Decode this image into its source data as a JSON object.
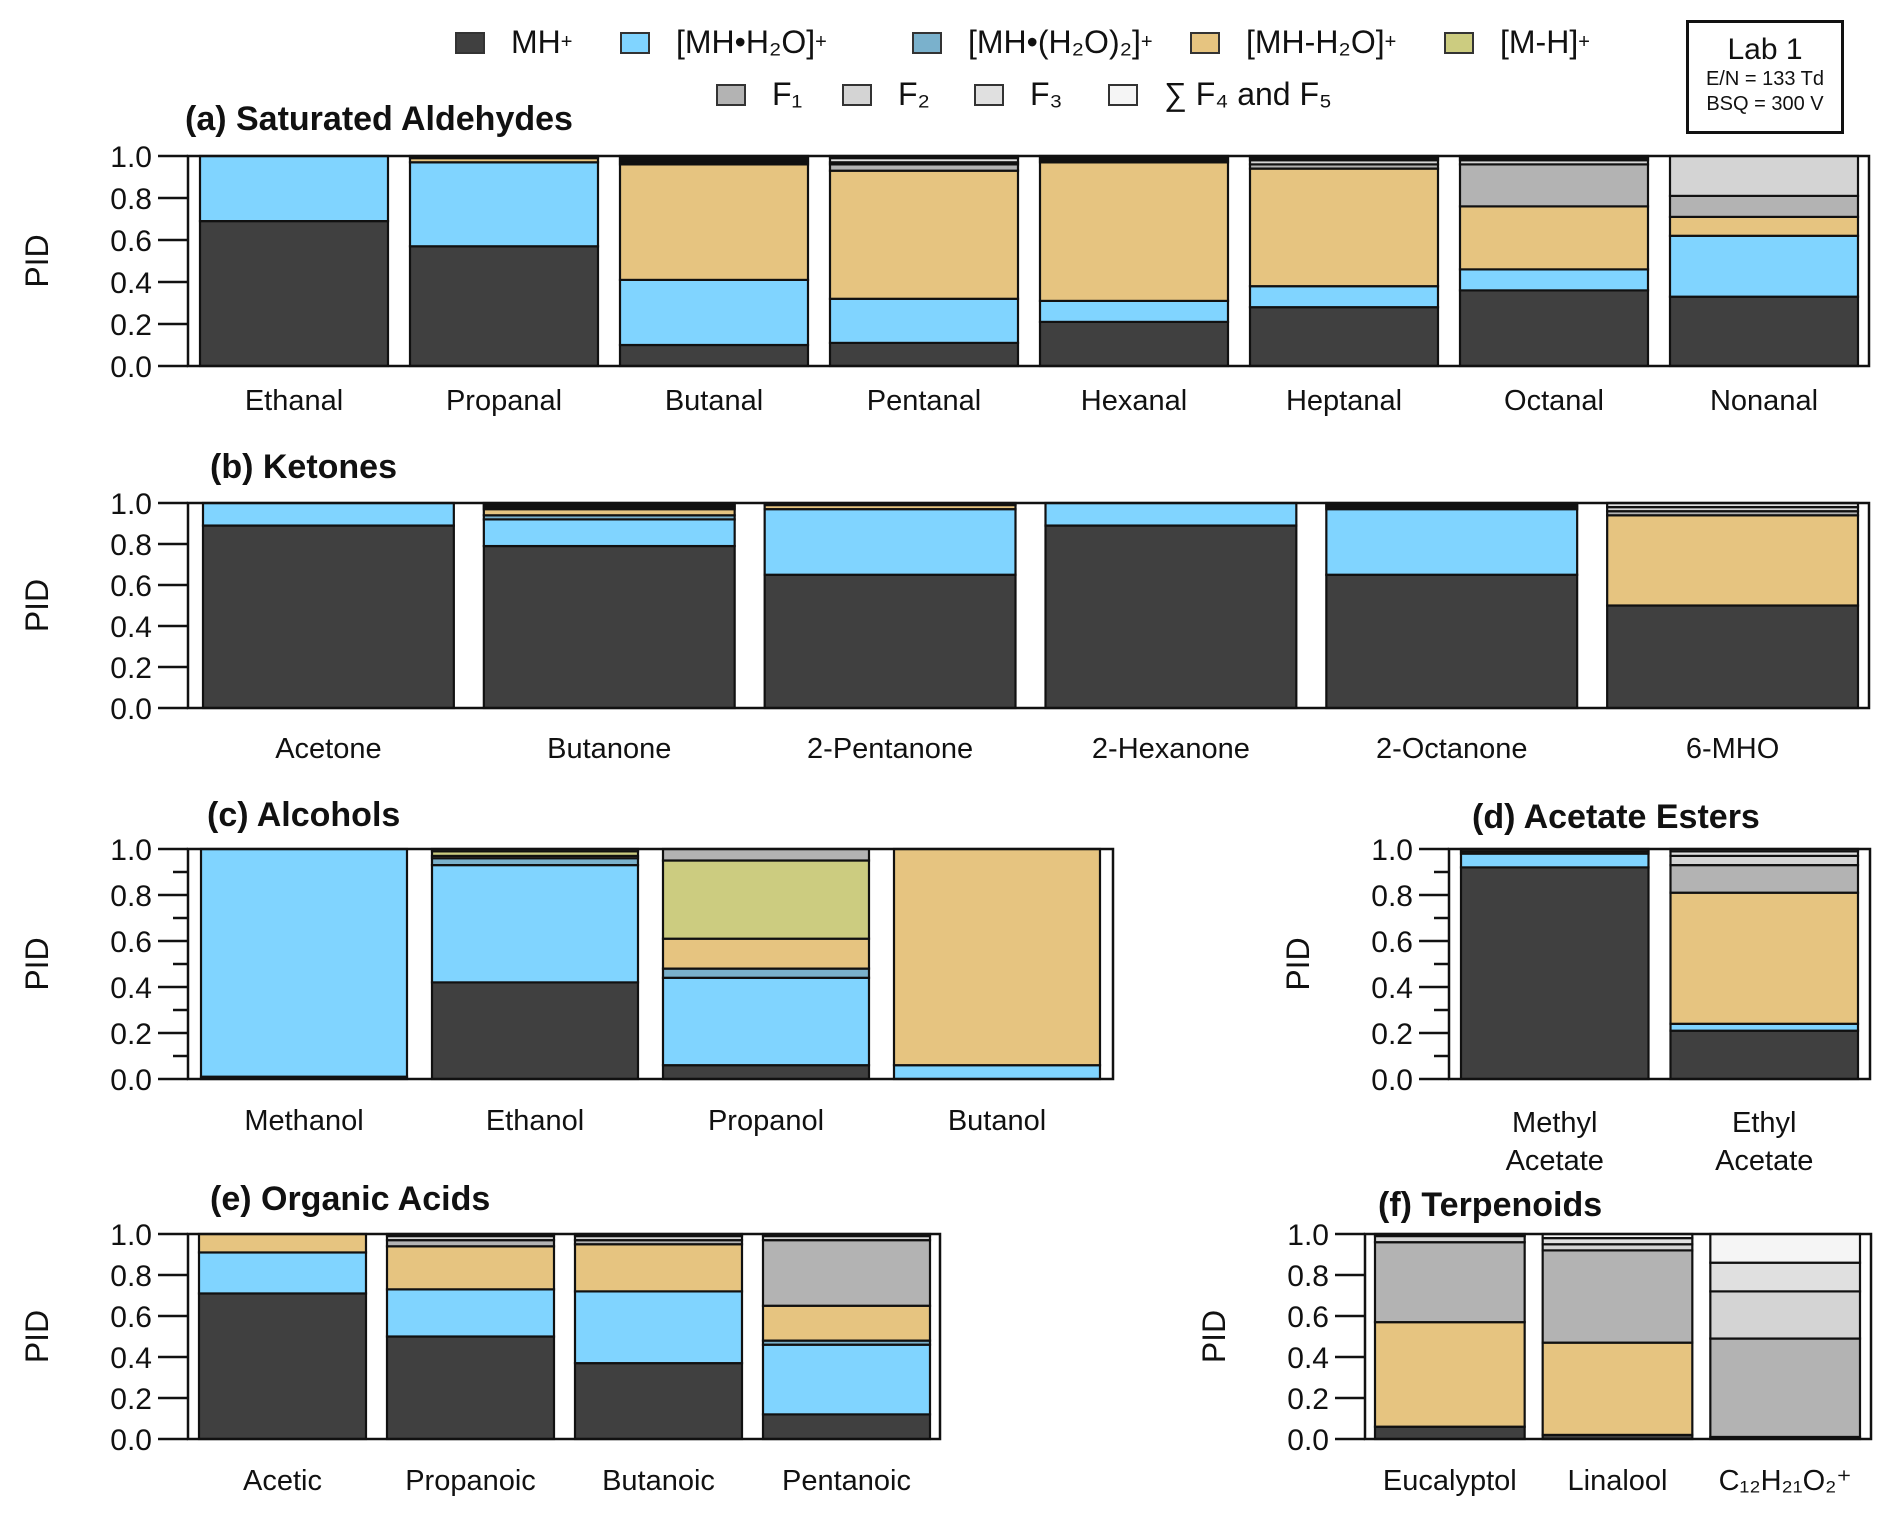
{
  "chart_data": {
    "type": "bar",
    "stacked": true,
    "ylabel": "PID",
    "ylim": [
      0,
      1.0
    ],
    "yticks": [
      "0.0",
      "0.2",
      "0.4",
      "0.6",
      "0.8",
      "1.0"
    ],
    "legend": {
      "placement": "top",
      "entries": [
        {
          "key": "MH",
          "label": "MH",
          "sup": "+",
          "color": "#404040"
        },
        {
          "key": "MH_H2O",
          "label": "[MH•H₂O]",
          "sup": "+",
          "color": "#80d4ff"
        },
        {
          "key": "MH_H2O2",
          "label": "[MH•(H₂O)₂]",
          "sup": "+",
          "color": "#7ab1cc"
        },
        {
          "key": "MH_minus_H2O",
          "label": "[MH-H₂O]",
          "sup": "+",
          "color": "#e6c480"
        },
        {
          "key": "M_minus_H",
          "label": "[M-H]",
          "sup": "+",
          "color": "#cccc80"
        },
        {
          "key": "F1",
          "label": "F₁",
          "sup": "",
          "color": "#b3b3b3"
        },
        {
          "key": "F2",
          "label": "F₂",
          "sup": "",
          "color": "#d4d4d4"
        },
        {
          "key": "F3",
          "label": "F₃",
          "sup": "",
          "color": "#e0e0e0"
        },
        {
          "key": "F45",
          "label": "∑ F₄ and F₅",
          "sup": "",
          "color": "#f5f5f5"
        }
      ]
    },
    "annotation": {
      "title": "Lab 1",
      "line1": "E/N = 133 Td",
      "line2": "BSQ = 300 V"
    },
    "panels": [
      {
        "id": "a",
        "title": "(a) Saturated Aldehydes",
        "categories": [
          "Ethanal",
          "Propanal",
          "Butanal",
          "Pentanal",
          "Hexanal",
          "Heptanal",
          "Octanal",
          "Nonanal"
        ],
        "series": {
          "MH": [
            0.69,
            0.57,
            0.1,
            0.11,
            0.21,
            0.28,
            0.36,
            0.33
          ],
          "MH_H2O": [
            0.31,
            0.4,
            0.31,
            0.21,
            0.1,
            0.1,
            0.1,
            0.29
          ],
          "MH_H2O2": [
            0,
            0,
            0,
            0,
            0,
            0,
            0,
            0
          ],
          "MH_minus_H2O": [
            0,
            0.02,
            0.55,
            0.61,
            0.66,
            0.56,
            0.3,
            0.09
          ],
          "M_minus_H": [
            0,
            0,
            0,
            0,
            0,
            0,
            0,
            0
          ],
          "F1": [
            0,
            0.01,
            0.01,
            0.03,
            0.01,
            0.02,
            0.2,
            0.1
          ],
          "F2": [
            0,
            0,
            0.01,
            0.01,
            0.01,
            0.02,
            0.02,
            0.19
          ],
          "F3": [
            0,
            0,
            0.01,
            0.02,
            0.01,
            0.01,
            0.01,
            0
          ],
          "F45": [
            0,
            0,
            0.01,
            0.01,
            0,
            0.01,
            0.01,
            0
          ]
        }
      },
      {
        "id": "b",
        "title": "(b) Ketones",
        "categories": [
          "Acetone",
          "Butanone",
          "2-Pentanone",
          "2-Hexanone",
          "2-Octanone",
          "6-MHO"
        ],
        "series": {
          "MH": [
            0.89,
            0.79,
            0.65,
            0.89,
            0.65,
            0.5
          ],
          "MH_H2O": [
            0.11,
            0.13,
            0.32,
            0.11,
            0.32,
            0
          ],
          "MH_H2O2": [
            0,
            0.02,
            0,
            0,
            0,
            0
          ],
          "MH_minus_H2O": [
            0,
            0.03,
            0.02,
            0,
            0,
            0.44
          ],
          "M_minus_H": [
            0,
            0.01,
            0,
            0,
            0,
            0
          ],
          "F1": [
            0,
            0.01,
            0.01,
            0,
            0.01,
            0.02
          ],
          "F2": [
            0,
            0.01,
            0,
            0,
            0.01,
            0.02
          ],
          "F3": [
            0,
            0,
            0,
            0,
            0.01,
            0.02
          ],
          "F45": [
            0,
            0,
            0,
            0,
            0,
            0
          ]
        }
      },
      {
        "id": "c",
        "title": "(c) Alcohols",
        "categories": [
          "Methanol",
          "Ethanol",
          "Propanol",
          "Butanol"
        ],
        "series": {
          "MH": [
            0.01,
            0.42,
            0.06,
            0
          ],
          "MH_H2O": [
            0.99,
            0.51,
            0.38,
            0.06
          ],
          "MH_H2O2": [
            0,
            0.03,
            0.04,
            0
          ],
          "MH_minus_H2O": [
            0,
            0.01,
            0.13,
            0.94
          ],
          "M_minus_H": [
            0,
            0.02,
            0.34,
            0
          ],
          "F1": [
            0,
            0.01,
            0.05,
            0
          ],
          "F2": [
            0,
            0,
            0,
            0
          ],
          "F3": [
            0,
            0,
            0,
            0
          ],
          "F45": [
            0,
            0,
            0,
            0
          ]
        }
      },
      {
        "id": "d",
        "title": "(d) Acetate Esters",
        "categories": [
          "Methyl Acetate",
          "Ethyl Acetate"
        ],
        "series": {
          "MH": [
            0.92,
            0.21
          ],
          "MH_H2O": [
            0.06,
            0.03
          ],
          "MH_H2O2": [
            0,
            0
          ],
          "MH_minus_H2O": [
            0,
            0.57
          ],
          "M_minus_H": [
            0,
            0
          ],
          "F1": [
            0.01,
            0.12
          ],
          "F2": [
            0.01,
            0.04
          ],
          "F3": [
            0,
            0.02
          ],
          "F45": [
            0,
            0.01
          ]
        }
      },
      {
        "id": "e",
        "title": "(e) Organic Acids",
        "categories": [
          "Acetic",
          "Propanoic",
          "Butanoic",
          "Pentanoic"
        ],
        "series": {
          "MH": [
            0.71,
            0.5,
            0.37,
            0.12
          ],
          "MH_H2O": [
            0.2,
            0.23,
            0.35,
            0.34
          ],
          "MH_H2O2": [
            0,
            0,
            0,
            0.02
          ],
          "MH_minus_H2O": [
            0.09,
            0.21,
            0.23,
            0.17
          ],
          "M_minus_H": [
            0,
            0,
            0,
            0
          ],
          "F1": [
            0,
            0.03,
            0.02,
            0.32
          ],
          "F2": [
            0,
            0.02,
            0.02,
            0.02
          ],
          "F3": [
            0,
            0.01,
            0.01,
            0.01
          ],
          "F45": [
            0,
            0,
            0,
            0
          ]
        }
      },
      {
        "id": "f",
        "title": "(f) Terpenoids",
        "categories": [
          "Eucalyptol",
          "Linalool",
          "C₁₂H₂₁O₂⁺"
        ],
        "series": {
          "MH": [
            0.06,
            0.02,
            0.01
          ],
          "MH_H2O": [
            0,
            0,
            0
          ],
          "MH_H2O2": [
            0,
            0,
            0
          ],
          "MH_minus_H2O": [
            0.51,
            0.45,
            0
          ],
          "M_minus_H": [
            0,
            0,
            0
          ],
          "F1": [
            0.39,
            0.45,
            0.48
          ],
          "F2": [
            0.03,
            0.03,
            0.23
          ],
          "F3": [
            0.01,
            0.03,
            0.14
          ],
          "F45": [
            0,
            0.02,
            0.14
          ]
        }
      }
    ]
  }
}
